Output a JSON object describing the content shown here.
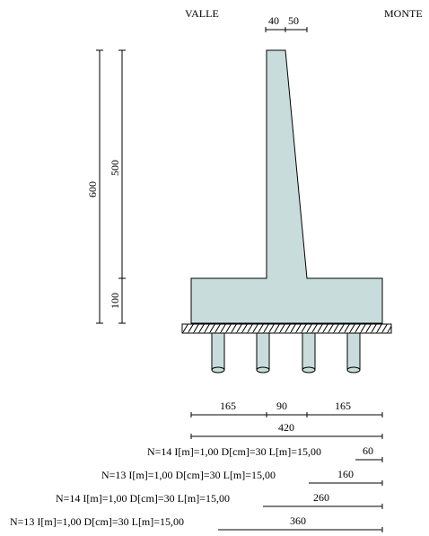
{
  "labels": {
    "left_side": "VALLE",
    "right_side": "MONTE"
  },
  "colors": {
    "concrete": "#c8dcdc",
    "line": "#000000",
    "background": "#ffffff"
  },
  "dimensions": {
    "stem_top_left": "40",
    "stem_top_right": "50",
    "total_height": "600",
    "stem_height": "500",
    "footing_height": "100",
    "toe": "165",
    "stem_base": "90",
    "heel": "165",
    "footing_width": "420"
  },
  "pile_rows": [
    {
      "spec": "N=14  I[m]=1,00  D[cm]=30  L[m]=15,00",
      "distance": "60"
    },
    {
      "spec": "N=13  I[m]=1,00  D[cm]=30  L[m]=15,00",
      "distance": "160"
    },
    {
      "spec": "N=14  I[m]=1,00  D[cm]=30  L[m]=15,00",
      "distance": "260"
    },
    {
      "spec": "N=13  I[m]=1,00  D[cm]=30  L[m]=15,00",
      "distance": "360"
    }
  ]
}
